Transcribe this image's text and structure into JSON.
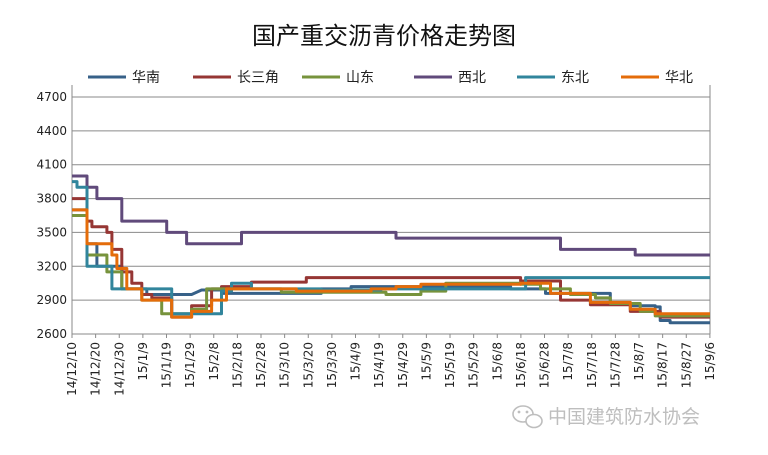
{
  "chart_data": {
    "type": "line",
    "title": "国产重交沥青价格走势图",
    "xlabel": "",
    "ylabel": "",
    "ylim": [
      2600,
      4700
    ],
    "yticks": [
      2600,
      2900,
      3200,
      3500,
      3800,
      4100,
      4400,
      4700
    ],
    "x_tick_labels": [
      "14/12/10",
      "14/12/20",
      "14/12/30",
      "15/1/9",
      "15/1/19",
      "15/1/29",
      "15/2/8",
      "15/2/18",
      "15/2/28",
      "15/3/10",
      "15/3/20",
      "15/3/30",
      "15/4/9",
      "15/4/19",
      "15/4/29",
      "15/5/9",
      "15/5/19",
      "15/5/29",
      "15/6/8",
      "15/6/18",
      "15/6/28",
      "15/7/8",
      "15/7/18",
      "15/7/28",
      "15/8/7",
      "15/8/17",
      "15/8/27",
      "15/9/6"
    ],
    "grid": true,
    "legend_position": "top",
    "series": [
      {
        "name": "华南",
        "color": "#376188",
        "values": [
          [
            0,
            3700
          ],
          [
            3,
            3700
          ],
          [
            3,
            3400
          ],
          [
            5,
            3400
          ],
          [
            5,
            3200
          ],
          [
            10,
            3200
          ],
          [
            10,
            3000
          ],
          [
            15,
            3000
          ],
          [
            15,
            2950
          ],
          [
            24,
            2950
          ],
          [
            26,
            2990
          ],
          [
            30,
            2990
          ],
          [
            30,
            2960
          ],
          [
            50,
            2960
          ],
          [
            50,
            3000
          ],
          [
            56,
            3000
          ],
          [
            56,
            3020
          ],
          [
            88,
            3020
          ],
          [
            88,
            3000
          ],
          [
            95,
            3000
          ],
          [
            95,
            2960
          ],
          [
            108,
            2960
          ],
          [
            108,
            2870
          ],
          [
            112,
            2870
          ],
          [
            112,
            2850
          ],
          [
            117,
            2850
          ],
          [
            117,
            2840
          ],
          [
            118,
            2840
          ],
          [
            118,
            2720
          ],
          [
            120,
            2720
          ],
          [
            120,
            2700
          ],
          [
            128,
            2700
          ]
        ]
      },
      {
        "name": "长三角",
        "color": "#963634",
        "values": [
          [
            0,
            3800
          ],
          [
            3,
            3800
          ],
          [
            3,
            3600
          ],
          [
            4,
            3600
          ],
          [
            4,
            3550
          ],
          [
            7,
            3550
          ],
          [
            7,
            3500
          ],
          [
            8,
            3500
          ],
          [
            8,
            3350
          ],
          [
            10,
            3350
          ],
          [
            10,
            3150
          ],
          [
            12,
            3150
          ],
          [
            12,
            3050
          ],
          [
            14,
            3050
          ],
          [
            14,
            2950
          ],
          [
            16,
            2950
          ],
          [
            16,
            2920
          ],
          [
            20,
            2920
          ],
          [
            20,
            2750
          ],
          [
            24,
            2750
          ],
          [
            24,
            2850
          ],
          [
            28,
            2850
          ],
          [
            28,
            3000
          ],
          [
            30,
            3000
          ],
          [
            30,
            3020
          ],
          [
            36,
            3020
          ],
          [
            36,
            3060
          ],
          [
            47,
            3060
          ],
          [
            47,
            3100
          ],
          [
            90,
            3100
          ],
          [
            90,
            3070
          ],
          [
            98,
            3070
          ],
          [
            98,
            2900
          ],
          [
            104,
            2900
          ],
          [
            104,
            2860
          ],
          [
            112,
            2860
          ],
          [
            112,
            2800
          ],
          [
            118,
            2800
          ],
          [
            118,
            2750
          ],
          [
            128,
            2750
          ]
        ]
      },
      {
        "name": "山东",
        "color": "#77933c",
        "values": [
          [
            0,
            3650
          ],
          [
            3,
            3650
          ],
          [
            3,
            3300
          ],
          [
            7,
            3300
          ],
          [
            7,
            3150
          ],
          [
            10,
            3150
          ],
          [
            10,
            3000
          ],
          [
            14,
            3000
          ],
          [
            14,
            2900
          ],
          [
            18,
            2900
          ],
          [
            18,
            2780
          ],
          [
            24,
            2780
          ],
          [
            24,
            2820
          ],
          [
            27,
            2820
          ],
          [
            27,
            3000
          ],
          [
            42,
            3000
          ],
          [
            42,
            2970
          ],
          [
            63,
            2970
          ],
          [
            63,
            2950
          ],
          [
            70,
            2950
          ],
          [
            70,
            2980
          ],
          [
            75,
            2980
          ],
          [
            75,
            3050
          ],
          [
            90,
            3050
          ],
          [
            90,
            3040
          ],
          [
            94,
            3040
          ],
          [
            94,
            3000
          ],
          [
            100,
            3000
          ],
          [
            100,
            2950
          ],
          [
            105,
            2950
          ],
          [
            105,
            2920
          ],
          [
            108,
            2920
          ],
          [
            108,
            2870
          ],
          [
            114,
            2870
          ],
          [
            114,
            2800
          ],
          [
            117,
            2800
          ],
          [
            117,
            2760
          ],
          [
            128,
            2760
          ]
        ]
      },
      {
        "name": "西北",
        "color": "#604a7b",
        "values": [
          [
            0,
            4000
          ],
          [
            3,
            4000
          ],
          [
            3,
            3900
          ],
          [
            5,
            3900
          ],
          [
            5,
            3800
          ],
          [
            10,
            3800
          ],
          [
            10,
            3600
          ],
          [
            19,
            3600
          ],
          [
            19,
            3500
          ],
          [
            23,
            3500
          ],
          [
            23,
            3400
          ],
          [
            34,
            3400
          ],
          [
            34,
            3500
          ],
          [
            65,
            3500
          ],
          [
            65,
            3450
          ],
          [
            98,
            3450
          ],
          [
            98,
            3350
          ],
          [
            113,
            3350
          ],
          [
            113,
            3300
          ],
          [
            128,
            3300
          ]
        ]
      },
      {
        "name": "东北",
        "color": "#31859c",
        "values": [
          [
            0,
            3950
          ],
          [
            1,
            3950
          ],
          [
            1,
            3900
          ],
          [
            3,
            3900
          ],
          [
            3,
            3200
          ],
          [
            8,
            3200
          ],
          [
            8,
            3000
          ],
          [
            20,
            3000
          ],
          [
            20,
            2780
          ],
          [
            30,
            2780
          ],
          [
            30,
            2980
          ],
          [
            32,
            2980
          ],
          [
            32,
            3050
          ],
          [
            36,
            3050
          ],
          [
            36,
            3000
          ],
          [
            50,
            3000
          ],
          [
            50,
            2990
          ],
          [
            62,
            2990
          ],
          [
            62,
            3000
          ],
          [
            91,
            3000
          ],
          [
            91,
            3100
          ],
          [
            128,
            3100
          ]
        ]
      },
      {
        "name": "华北",
        "color": "#e46c0a",
        "values": [
          [
            0,
            3700
          ],
          [
            3,
            3700
          ],
          [
            3,
            3400
          ],
          [
            8,
            3400
          ],
          [
            8,
            3300
          ],
          [
            9,
            3300
          ],
          [
            9,
            3180
          ],
          [
            11,
            3180
          ],
          [
            11,
            3000
          ],
          [
            14,
            3000
          ],
          [
            14,
            2900
          ],
          [
            20,
            2900
          ],
          [
            20,
            2750
          ],
          [
            24,
            2750
          ],
          [
            24,
            2800
          ],
          [
            28,
            2800
          ],
          [
            28,
            2900
          ],
          [
            31,
            2900
          ],
          [
            31,
            3000
          ],
          [
            45,
            3000
          ],
          [
            45,
            2980
          ],
          [
            60,
            2980
          ],
          [
            60,
            3000
          ],
          [
            65,
            3000
          ],
          [
            65,
            3020
          ],
          [
            70,
            3020
          ],
          [
            70,
            3040
          ],
          [
            90,
            3040
          ],
          [
            90,
            3050
          ],
          [
            96,
            3050
          ],
          [
            96,
            2960
          ],
          [
            104,
            2960
          ],
          [
            104,
            2880
          ],
          [
            112,
            2880
          ],
          [
            112,
            2820
          ],
          [
            117,
            2820
          ],
          [
            117,
            2780
          ],
          [
            128,
            2780
          ]
        ]
      }
    ]
  },
  "watermark": {
    "text": "中国建筑防水协会",
    "icon": "wechat-icon"
  }
}
